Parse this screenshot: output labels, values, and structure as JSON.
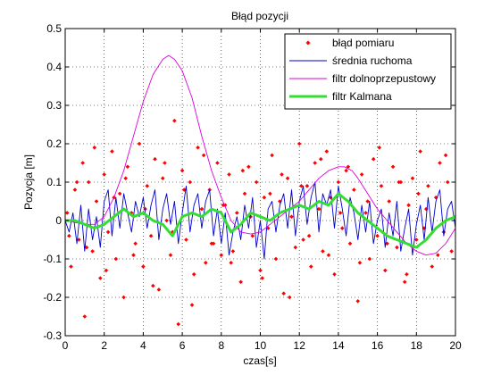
{
  "chart_data": {
    "type": "line",
    "title": "Błąd pozycji",
    "xlabel": "czas[s]",
    "ylabel": "Pozycja [m]",
    "xlim": [
      0,
      20
    ],
    "ylim": [
      -0.3,
      0.5
    ],
    "xticks": [
      0,
      2,
      4,
      6,
      8,
      10,
      12,
      14,
      16,
      18,
      20
    ],
    "yticks": [
      -0.3,
      -0.2,
      -0.1,
      0,
      0.1,
      0.2,
      0.3,
      0.4,
      0.5
    ],
    "grid": true,
    "legend_position": "top-right",
    "series": [
      {
        "name": "błąd pomiaru",
        "style": "markers",
        "color": "#ff0000",
        "x": [
          0.1,
          0.3,
          0.5,
          0.7,
          0.9,
          1.0,
          1.2,
          1.4,
          1.6,
          1.8,
          2.0,
          2.2,
          2.4,
          2.6,
          2.8,
          3.0,
          3.2,
          3.4,
          3.6,
          3.8,
          4.0,
          4.2,
          4.4,
          4.6,
          4.8,
          5.0,
          5.2,
          5.4,
          5.6,
          5.8,
          6.0,
          6.2,
          6.4,
          6.6,
          6.8,
          7.0,
          7.2,
          7.4,
          7.6,
          7.8,
          8.0,
          8.2,
          8.4,
          8.6,
          8.8,
          9.0,
          9.2,
          9.4,
          9.6,
          9.8,
          10.0,
          10.2,
          10.4,
          10.6,
          10.8,
          11.0,
          11.2,
          11.4,
          11.6,
          11.8,
          12.0,
          12.2,
          12.4,
          12.6,
          12.8,
          13.0,
          13.2,
          13.4,
          13.6,
          13.8,
          14.0,
          14.2,
          14.4,
          14.6,
          14.8,
          15.0,
          15.2,
          15.4,
          15.6,
          15.8,
          16.0,
          16.2,
          16.4,
          16.6,
          16.8,
          17.0,
          17.2,
          17.4,
          17.6,
          17.8,
          18.0,
          18.2,
          18.4,
          18.6,
          18.8,
          19.0,
          19.2,
          19.4,
          19.6,
          19.8,
          0.2,
          0.6,
          1.1,
          1.5,
          2.1,
          2.5,
          3.1,
          3.5,
          4.1,
          4.5,
          5.1,
          5.5,
          6.1,
          6.5,
          7.1,
          7.5,
          8.1,
          8.5,
          9.1,
          9.5,
          10.1,
          10.5,
          11.1,
          11.5,
          12.1,
          12.5,
          13.1,
          13.5,
          14.1,
          14.5,
          15.1,
          15.5,
          16.1,
          16.5,
          17.1,
          17.5,
          18.1,
          18.5,
          19.1,
          19.5
        ],
        "y": [
          0.02,
          -0.12,
          0.08,
          -0.05,
          0.15,
          -0.25,
          0.1,
          -0.08,
          0.05,
          -0.15,
          0.12,
          -0.03,
          0.18,
          -0.1,
          0.07,
          -0.2,
          0.14,
          0.02,
          -0.06,
          0.2,
          -0.12,
          0.09,
          -0.04,
          0.16,
          -0.18,
          0.11,
          0.0,
          -0.09,
          0.26,
          -0.27,
          0.13,
          -0.05,
          0.1,
          -0.14,
          0.19,
          0.03,
          -0.11,
          0.08,
          -0.06,
          0.15,
          -0.09,
          0.04,
          0.12,
          -0.08,
          0.02,
          -0.16,
          0.07,
          0.14,
          -0.04,
          0.1,
          -0.13,
          0.06,
          -0.02,
          0.17,
          -0.1,
          0.05,
          -0.19,
          0.11,
          0.01,
          -0.07,
          0.2,
          -0.05,
          0.09,
          -0.12,
          0.15,
          0.03,
          -0.08,
          0.18,
          0.06,
          -0.14,
          0.1,
          -0.02,
          0.13,
          -0.06,
          0.08,
          -0.21,
          0.12,
          0.02,
          -0.1,
          0.16,
          -0.04,
          0.09,
          -0.13,
          0.05,
          0.14,
          -0.07,
          0.1,
          -0.16,
          0.04,
          0.11,
          -0.05,
          0.18,
          -0.02,
          0.09,
          -0.12,
          0.06,
          0.15,
          -0.03,
          0.1,
          -0.08,
          -0.04,
          0.1,
          -0.07,
          0.19,
          -0.13,
          0.06,
          0.11,
          -0.09,
          0.03,
          -0.17,
          0.15,
          -0.03,
          0.08,
          -0.22,
          0.17,
          -0.06,
          0.04,
          -0.11,
          0.13,
          0.01,
          -0.15,
          0.07,
          0.12,
          -0.2,
          0.09,
          -0.04,
          0.16,
          -0.09,
          0.02,
          0.14,
          -0.11,
          0.05,
          0.19,
          -0.06,
          0.1,
          -0.14,
          0.07,
          0.03,
          -0.09,
          0.17
        ]
      },
      {
        "name": "średnia ruchoma",
        "style": "line",
        "color": "#0000cc",
        "x": [
          0.0,
          0.2,
          0.4,
          0.6,
          0.8,
          1.0,
          1.2,
          1.4,
          1.6,
          1.8,
          2.0,
          2.2,
          2.4,
          2.6,
          2.8,
          3.0,
          3.2,
          3.4,
          3.6,
          3.8,
          4.0,
          4.2,
          4.4,
          4.6,
          4.8,
          5.0,
          5.2,
          5.4,
          5.6,
          5.8,
          6.0,
          6.2,
          6.4,
          6.6,
          6.8,
          7.0,
          7.2,
          7.4,
          7.6,
          7.8,
          8.0,
          8.2,
          8.4,
          8.6,
          8.8,
          9.0,
          9.2,
          9.4,
          9.6,
          9.8,
          10.0,
          10.2,
          10.4,
          10.6,
          10.8,
          11.0,
          11.2,
          11.4,
          11.6,
          11.8,
          12.0,
          12.2,
          12.4,
          12.6,
          12.8,
          13.0,
          13.2,
          13.4,
          13.6,
          13.8,
          14.0,
          14.2,
          14.4,
          14.6,
          14.8,
          15.0,
          15.2,
          15.4,
          15.6,
          15.8,
          16.0,
          16.2,
          16.4,
          16.6,
          16.8,
          17.0,
          17.2,
          17.4,
          17.6,
          17.8,
          18.0,
          18.2,
          18.4,
          18.6,
          18.8,
          19.0,
          19.2,
          19.4,
          19.6,
          19.8,
          20.0
        ],
        "y": [
          0.0,
          -0.03,
          0.02,
          -0.06,
          0.04,
          -0.08,
          0.03,
          -0.05,
          0.01,
          -0.07,
          0.05,
          0.08,
          -0.04,
          0.06,
          -0.02,
          0.07,
          0.02,
          -0.03,
          0.05,
          0.01,
          0.06,
          -0.02,
          0.04,
          0.08,
          -0.05,
          0.03,
          0.07,
          -0.01,
          0.05,
          -0.06,
          0.02,
          0.09,
          -0.03,
          0.04,
          0.07,
          -0.02,
          0.05,
          0.08,
          -0.04,
          0.03,
          -0.06,
          0.02,
          -0.09,
          -0.03,
          0.01,
          -0.05,
          0.04,
          -0.02,
          0.06,
          -0.07,
          0.0,
          -0.1,
          0.03,
          0.05,
          -0.03,
          0.04,
          0.07,
          -0.02,
          0.08,
          -0.04,
          0.05,
          0.09,
          -0.01,
          0.06,
          0.1,
          -0.03,
          0.07,
          0.04,
          0.08,
          -0.02,
          0.09,
          0.03,
          -0.04,
          0.06,
          0.02,
          -0.05,
          0.04,
          -0.03,
          0.05,
          -0.06,
          0.0,
          0.03,
          -0.07,
          0.02,
          -0.04,
          0.05,
          -0.08,
          -0.02,
          0.03,
          -0.09,
          -0.01,
          0.04,
          -0.05,
          0.06,
          -0.03,
          0.05,
          0.08,
          -0.04,
          0.03,
          0.05,
          -0.02
        ]
      },
      {
        "name": "filtr dolnoprzepustowy",
        "style": "line",
        "color": "#dd00dd",
        "x": [
          0.0,
          0.5,
          1.0,
          1.5,
          2.0,
          2.5,
          3.0,
          3.5,
          4.0,
          4.5,
          5.0,
          5.3,
          5.6,
          6.0,
          6.5,
          7.0,
          7.5,
          8.0,
          8.5,
          9.0,
          9.5,
          10.0,
          10.5,
          11.0,
          11.5,
          12.0,
          12.5,
          13.0,
          13.5,
          14.0,
          14.3,
          14.7,
          15.0,
          15.5,
          16.0,
          16.5,
          17.0,
          17.5,
          18.0,
          18.5,
          19.0,
          19.5,
          20.0
        ],
        "y": [
          0.0,
          -0.005,
          -0.01,
          -0.01,
          0.01,
          0.06,
          0.13,
          0.22,
          0.31,
          0.38,
          0.42,
          0.43,
          0.42,
          0.39,
          0.32,
          0.22,
          0.13,
          0.06,
          0.0,
          -0.03,
          -0.035,
          -0.03,
          -0.01,
          0.01,
          0.03,
          0.05,
          0.08,
          0.11,
          0.13,
          0.14,
          0.14,
          0.13,
          0.11,
          0.07,
          0.03,
          0.0,
          -0.03,
          -0.06,
          -0.08,
          -0.09,
          -0.085,
          -0.06,
          -0.02
        ]
      },
      {
        "name": "filtr Kalmana",
        "style": "line",
        "color": "#33dd33",
        "x": [
          0.0,
          0.5,
          1.0,
          1.5,
          2.0,
          2.5,
          3.0,
          3.5,
          4.0,
          4.5,
          5.0,
          5.5,
          6.0,
          6.5,
          7.0,
          7.5,
          8.0,
          8.5,
          9.0,
          9.5,
          10.0,
          10.5,
          11.0,
          11.5,
          12.0,
          12.5,
          13.0,
          13.5,
          14.0,
          14.5,
          15.0,
          15.5,
          16.0,
          16.5,
          17.0,
          17.5,
          18.0,
          18.5,
          19.0,
          19.5,
          20.0
        ],
        "y": [
          0.0,
          0.0,
          -0.01,
          -0.02,
          -0.01,
          0.01,
          0.03,
          0.01,
          0.02,
          0.0,
          -0.01,
          -0.04,
          0.01,
          0.02,
          0.01,
          0.03,
          0.02,
          -0.03,
          -0.01,
          0.02,
          0.01,
          0.0,
          0.02,
          0.03,
          0.04,
          0.03,
          0.05,
          0.04,
          0.07,
          0.05,
          0.02,
          0.0,
          -0.02,
          -0.04,
          -0.05,
          -0.06,
          -0.07,
          -0.05,
          -0.02,
          0.0,
          0.01
        ]
      }
    ]
  }
}
